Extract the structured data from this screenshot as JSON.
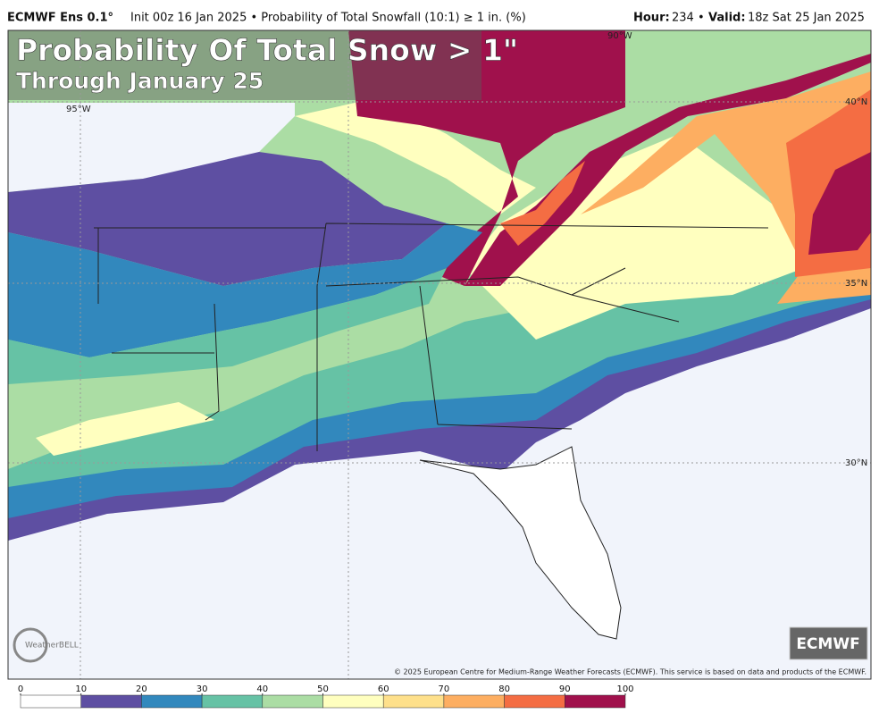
{
  "header": {
    "model": "ECMWF Ens 0.1°",
    "description": "Init 00z 16 Jan 2025 • Probability of Total Snowfall (10:1) ≥ 1 in. (%)",
    "hour_label": "Hour:",
    "hour": "234 •",
    "valid_label": "Valid:",
    "valid": "18z Sat 25 Jan 2025"
  },
  "overlay": {
    "title": "Probability Of Total Snow > 1\"",
    "subtitle": "Through January 25"
  },
  "map": {
    "lat_labels": [
      "40°N",
      "35°N",
      "30°N"
    ],
    "lon_labels": [
      "95°W",
      "90°W"
    ]
  },
  "legend": {
    "ticks": [
      0,
      10,
      20,
      30,
      40,
      50,
      60,
      70,
      80,
      90,
      100
    ],
    "colors": [
      "#ffffff",
      "#5e4fa2",
      "#3288bd",
      "#66c2a5",
      "#abdda4",
      "#ffffbf",
      "#fee08b",
      "#fdae61",
      "#f46d43",
      "#a0114c"
    ]
  },
  "credits": {
    "copyright": "© 2025 European Centre for Medium-Range Weather Forecasts (ECMWF). This service is based on data and products of the ECMWF.",
    "logo": "ECMWF",
    "brand": "WeatherBELL"
  }
}
